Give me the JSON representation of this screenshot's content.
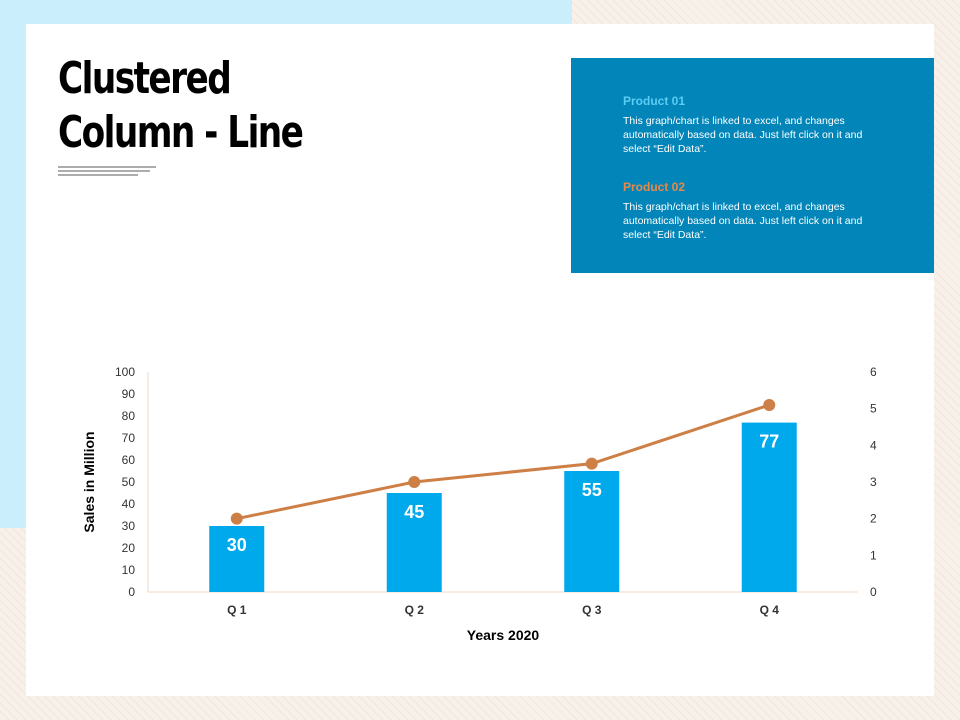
{
  "title": {
    "line1": "Clustered",
    "line2": "Column - Line"
  },
  "legend": {
    "product1": {
      "name": "Product 01",
      "desc": "This graph/chart is linked to excel, and changes automatically based on data. Just left click on it and select “Edit Data”."
    },
    "product2": {
      "name": "Product 02",
      "desc": "This graph/chart is linked to excel, and changes automatically based on data. Just left click on it and select “Edit Data”."
    }
  },
  "colors": {
    "bar": "#00a8ec",
    "line": "#cd7f45",
    "box": "#0286ba"
  },
  "chart_data": {
    "type": "bar",
    "title": "",
    "xlabel": "Years 2020",
    "ylabel": "Sales in Million",
    "categories": [
      "Q 1",
      "Q 2",
      "Q 3",
      "Q 4"
    ],
    "ylim": [
      0,
      100
    ],
    "yticks": [
      "0",
      "10",
      "20",
      "30",
      "40",
      "50",
      "60",
      "70",
      "80",
      "90",
      "100"
    ],
    "y2lim": [
      0,
      6
    ],
    "y2ticks": [
      "0",
      "1",
      "2",
      "3",
      "4",
      "5",
      "6"
    ],
    "series": [
      {
        "name": "Product 01",
        "type": "bar",
        "axis": "left",
        "values": [
          30,
          45,
          55,
          77
        ],
        "labels": [
          "30",
          "45",
          "55",
          "77"
        ]
      },
      {
        "name": "Product 02",
        "type": "line",
        "axis": "right",
        "values": [
          2,
          3,
          3.5,
          5.1
        ]
      }
    ]
  }
}
